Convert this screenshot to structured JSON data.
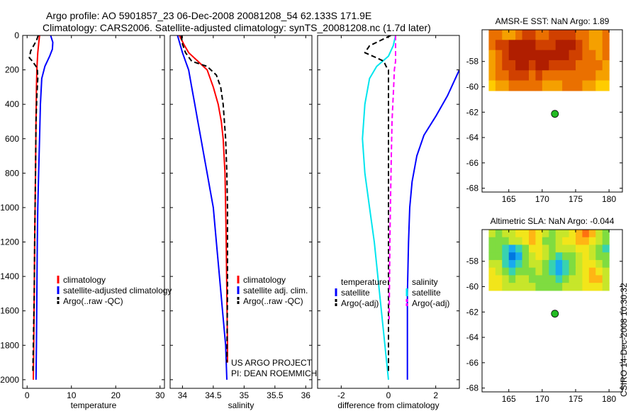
{
  "figure": {
    "title_line1": "Argo profile: AO 5901857_23 06-Dec-2008 20081208_54 62.133S 171.9E",
    "title_line2": "Climatology: CARS2006. Satellite-adjusted climatology: synTS_20081208.nc (1.7d later)",
    "side_label": "CSIRO 14-Dec-2008 10:30:32"
  },
  "credit": {
    "line1": "US ARGO PROJECT",
    "line2": "PI: DEAN ROEMMICH"
  },
  "colors": {
    "climatology": "#ff0000",
    "satellite": "#0000ff",
    "argo": "#000000",
    "temp_diff": "#00e5ee",
    "sal_diff": "#ff00ff",
    "float_marker": "#22bb22"
  },
  "chart_data": [
    {
      "type": "line",
      "xlabel": "temperature",
      "xlim": [
        -1,
        31
      ],
      "ylim": [
        2050,
        0
      ],
      "y_reversed": true,
      "xticks": [
        0,
        10,
        20,
        30
      ],
      "yticks": [
        0,
        200,
        400,
        600,
        800,
        1000,
        1200,
        1400,
        1600,
        1800,
        2000
      ],
      "legend": {
        "position": "lower-right",
        "labels": [
          "climatology",
          "satellite-adjusted climatology",
          "Argo(..raw -QC)"
        ]
      },
      "series": [
        {
          "name": "climatology",
          "color": "#ff0000",
          "points": [
            [
              2.8,
              0
            ],
            [
              2.6,
              50
            ],
            [
              2.4,
              100
            ],
            [
              2.3,
              150
            ],
            [
              2.2,
              200
            ],
            [
              2.1,
              300
            ],
            [
              2.0,
              500
            ],
            [
              1.9,
              800
            ],
            [
              1.8,
              1000
            ],
            [
              1.7,
              1200
            ],
            [
              1.6,
              1500
            ],
            [
              1.5,
              1800
            ],
            [
              1.4,
              2000
            ]
          ]
        },
        {
          "name": "satellite-adjusted climatology",
          "color": "#0000ff",
          "points": [
            [
              5.3,
              0
            ],
            [
              5.8,
              40
            ],
            [
              5.7,
              80
            ],
            [
              5.1,
              120
            ],
            [
              4.0,
              180
            ],
            [
              3.3,
              250
            ],
            [
              3.0,
              400
            ],
            [
              2.8,
              600
            ],
            [
              2.6,
              800
            ],
            [
              2.4,
              1000
            ],
            [
              2.3,
              1200
            ],
            [
              2.2,
              1500
            ],
            [
              2.1,
              1800
            ],
            [
              2.0,
              2000
            ]
          ]
        },
        {
          "name": "Argo(..raw -QC)",
          "color": "#000000",
          "dashed": true,
          "points": [
            [
              2.5,
              0
            ],
            [
              2.1,
              30
            ],
            [
              0.8,
              90
            ],
            [
              0.5,
              130
            ],
            [
              1.2,
              150
            ],
            [
              2.3,
              190
            ],
            [
              2.4,
              250
            ],
            [
              2.2,
              350
            ],
            [
              2.0,
              500
            ],
            [
              1.9,
              800
            ],
            [
              1.8,
              1000
            ],
            [
              1.7,
              1200
            ],
            [
              1.6,
              1500
            ],
            [
              1.4,
              1800
            ],
            [
              1.3,
              1950
            ]
          ]
        }
      ]
    },
    {
      "type": "line",
      "xlabel": "salinity",
      "xlim": [
        33.8,
        36.1
      ],
      "ylim": [
        2050,
        0
      ],
      "y_reversed": true,
      "xticks": [
        34,
        34.5,
        35,
        35.5,
        36
      ],
      "yticks": [
        0,
        200,
        400,
        600,
        800,
        1000,
        1200,
        1400,
        1600,
        1800,
        2000
      ],
      "legend": {
        "position": "lower-right",
        "labels": [
          "climatology",
          "satellite adj. clim.",
          "Argo(..raw -QC)"
        ]
      },
      "series": [
        {
          "name": "climatology",
          "color": "#ff0000",
          "points": [
            [
              33.95,
              0
            ],
            [
              34.02,
              50
            ],
            [
              34.1,
              100
            ],
            [
              34.25,
              150
            ],
            [
              34.4,
              200
            ],
            [
              34.5,
              300
            ],
            [
              34.58,
              400
            ],
            [
              34.63,
              500
            ],
            [
              34.66,
              600
            ],
            [
              34.69,
              800
            ],
            [
              34.7,
              1000
            ],
            [
              34.71,
              1200
            ],
            [
              34.72,
              1500
            ],
            [
              34.73,
              1800
            ],
            [
              34.73,
              1900
            ]
          ]
        },
        {
          "name": "satellite adj. clim.",
          "color": "#0000ff",
          "points": [
            [
              33.92,
              0
            ],
            [
              33.96,
              50
            ],
            [
              34.0,
              100
            ],
            [
              34.05,
              150
            ],
            [
              34.1,
              200
            ],
            [
              34.15,
              300
            ],
            [
              34.2,
              400
            ],
            [
              34.25,
              500
            ],
            [
              34.3,
              600
            ],
            [
              34.35,
              700
            ],
            [
              34.4,
              800
            ],
            [
              34.45,
              900
            ],
            [
              34.5,
              1000
            ],
            [
              34.55,
              1200
            ],
            [
              34.6,
              1400
            ],
            [
              34.65,
              1600
            ],
            [
              34.7,
              1800
            ],
            [
              34.72,
              2000
            ]
          ]
        },
        {
          "name": "Argo(..raw -QC)",
          "color": "#000000",
          "dashed": true,
          "points": [
            [
              33.98,
              0
            ],
            [
              34.0,
              50
            ],
            [
              34.05,
              100
            ],
            [
              34.15,
              150
            ],
            [
              34.4,
              180
            ],
            [
              34.55,
              230
            ],
            [
              34.62,
              300
            ],
            [
              34.66,
              400
            ],
            [
              34.7,
              600
            ],
            [
              34.72,
              800
            ],
            [
              34.73,
              1000
            ],
            [
              34.73,
              1500
            ],
            [
              34.72,
              1900
            ]
          ]
        }
      ]
    },
    {
      "type": "line",
      "xlabel": "difference from climatology",
      "xlim": [
        -3,
        3
      ],
      "ylim": [
        2050,
        0
      ],
      "y_reversed": true,
      "xticks": [
        -2,
        0,
        2
      ],
      "yticks": [
        0,
        200,
        400,
        600,
        800,
        1000,
        1200,
        1400,
        1600,
        1800,
        2000
      ],
      "legend": {
        "position": "lower-middle",
        "left_title": "temperature",
        "right_title": "salinity",
        "left_labels": [
          "satellite",
          "Argo(-adj)"
        ],
        "right_labels": [
          "satellite",
          "Argo(-adj)"
        ]
      },
      "series": [
        {
          "name": "temperature satellite",
          "color": "#00e5ee",
          "points": [
            [
              0.3,
              0
            ],
            [
              0.2,
              60
            ],
            [
              0.0,
              120
            ],
            [
              -0.5,
              180
            ],
            [
              -0.8,
              250
            ],
            [
              -1.0,
              400
            ],
            [
              -1.1,
              600
            ],
            [
              -1.0,
              800
            ],
            [
              -0.8,
              1000
            ],
            [
              -0.6,
              1200
            ],
            [
              -0.45,
              1400
            ],
            [
              -0.3,
              1600
            ],
            [
              -0.15,
              1800
            ],
            [
              0.0,
              2000
            ]
          ]
        },
        {
          "name": "temperature Argo(-adj)",
          "color": "#000000",
          "dashed": true,
          "points": [
            [
              0.1,
              0
            ],
            [
              -0.8,
              60
            ],
            [
              -1.0,
              100
            ],
            [
              -0.5,
              130
            ],
            [
              -0.2,
              150
            ],
            [
              -0.1,
              180
            ],
            [
              0.0,
              200
            ],
            [
              0.0,
              1800
            ],
            [
              0.0,
              1950
            ]
          ]
        },
        {
          "name": "salinity satellite",
          "color": "#0000ff",
          "points": [
            [
              3.0,
              200
            ],
            [
              2.5,
              350
            ],
            [
              2.0,
              470
            ],
            [
              1.5,
              580
            ],
            [
              1.2,
              700
            ],
            [
              1.0,
              850
            ],
            [
              0.9,
              1000
            ],
            [
              0.85,
              1200
            ],
            [
              0.8,
              1500
            ],
            [
              0.8,
              1800
            ],
            [
              0.8,
              2000
            ]
          ]
        },
        {
          "name": "salinity Argo(-adj)",
          "color": "#ff00ff",
          "dashed": true,
          "points": [
            [
              0.3,
              0
            ],
            [
              0.3,
              80
            ],
            [
              0.3,
              150
            ],
            [
              0.25,
              200
            ],
            [
              0.22,
              300
            ],
            [
              0.15,
              500
            ],
            [
              0.12,
              700
            ],
            [
              0.08,
              1000
            ],
            [
              0.06,
              1200
            ],
            [
              0.04,
              1500
            ],
            [
              0.03,
              1650
            ]
          ]
        }
      ]
    },
    {
      "type": "heatmap",
      "title": "AMSR-E SST: NaN Argo: 1.89",
      "xlim": [
        161,
        182
      ],
      "ylim": [
        -68.3,
        -55.5
      ],
      "xticks": [
        165,
        170,
        175,
        180
      ],
      "yticks": [
        -58,
        -60,
        -62,
        -64,
        -66,
        -68
      ],
      "grid_extent": {
        "lon": [
          162,
          180
        ],
        "lat": [
          -60.3,
          -55.5
        ]
      },
      "colormap": [
        "#ffef00",
        "#ffcc00",
        "#f5a000",
        "#ea7000",
        "#d04000",
        "#b01e00"
      ],
      "cells": [
        [
          3,
          3,
          2,
          2,
          3,
          4,
          4,
          3,
          3,
          4,
          4,
          4,
          4,
          3,
          3,
          2,
          2,
          3
        ],
        [
          3,
          4,
          4,
          5,
          5,
          5,
          5,
          4,
          4,
          4,
          5,
          5,
          5,
          4,
          3,
          2,
          2,
          3
        ],
        [
          2,
          3,
          4,
          5,
          5,
          5,
          5,
          5,
          5,
          5,
          5,
          5,
          4,
          4,
          3,
          3,
          2,
          3
        ],
        [
          2,
          3,
          4,
          4,
          5,
          5,
          4,
          5,
          5,
          4,
          4,
          4,
          4,
          3,
          3,
          3,
          3,
          2
        ],
        [
          2,
          3,
          3,
          4,
          4,
          4,
          3,
          4,
          3,
          3,
          3,
          3,
          3,
          3,
          3,
          3,
          2,
          2
        ],
        [
          1,
          2,
          2,
          3,
          3,
          3,
          3,
          3,
          2,
          2,
          2,
          3,
          3,
          3,
          2,
          2,
          1,
          1
        ]
      ],
      "marker": {
        "lon": 171.9,
        "lat": -62.133
      }
    },
    {
      "type": "heatmap",
      "title": "Altimetric SLA: NaN Argo: -0.044",
      "xlim": [
        161,
        182
      ],
      "ylim": [
        -68.3,
        -55.5
      ],
      "xticks": [
        165,
        170,
        175,
        180
      ],
      "yticks": [
        -58,
        -60,
        -62,
        -64,
        -66,
        -68
      ],
      "grid_extent": {
        "lon": [
          162,
          180
        ],
        "lat": [
          -60.3,
          -55.5
        ]
      },
      "colormap": [
        "#0077e0",
        "#18aaf0",
        "#38d2b0",
        "#7fdc40",
        "#c7e62a",
        "#f2e51a",
        "#ffb514",
        "#ff7010"
      ],
      "cells": [
        [
          4,
          3,
          4,
          4,
          5,
          5,
          6,
          5,
          4,
          3,
          4,
          4,
          5,
          6,
          7,
          6,
          4,
          3
        ],
        [
          3,
          3,
          3,
          4,
          4,
          5,
          6,
          5,
          3,
          3,
          4,
          5,
          5,
          6,
          6,
          5,
          4,
          3
        ],
        [
          3,
          3,
          2,
          1,
          2,
          3,
          5,
          5,
          4,
          3,
          4,
          4,
          4,
          5,
          5,
          4,
          3,
          2
        ],
        [
          3,
          3,
          2,
          0,
          1,
          3,
          4,
          5,
          4,
          3,
          2,
          3,
          3,
          4,
          5,
          4,
          3,
          3
        ],
        [
          4,
          4,
          2,
          1,
          2,
          3,
          4,
          4,
          3,
          2,
          1,
          2,
          3,
          4,
          5,
          5,
          4,
          3
        ],
        [
          5,
          4,
          3,
          2,
          3,
          3,
          3,
          4,
          3,
          2,
          1,
          2,
          3,
          4,
          5,
          6,
          5,
          4
        ],
        [
          5,
          5,
          4,
          3,
          4,
          4,
          3,
          3,
          3,
          3,
          2,
          3,
          4,
          4,
          5,
          6,
          6,
          4
        ],
        [
          5,
          5,
          4,
          4,
          4,
          4,
          4,
          3,
          3,
          3,
          3,
          4,
          4,
          4,
          5,
          5,
          5,
          4
        ]
      ],
      "marker": {
        "lon": 171.9,
        "lat": -62.133
      }
    }
  ]
}
